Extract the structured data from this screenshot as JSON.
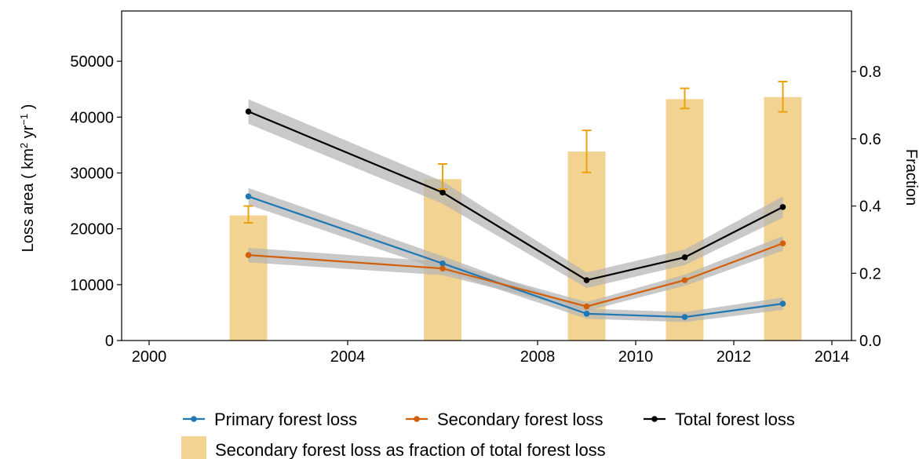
{
  "chart_data": {
    "type": "line",
    "x_axis": {
      "range": [
        1999.5,
        2014.5
      ],
      "ticks": [
        2000,
        2004,
        2008,
        2010,
        2012,
        2014
      ],
      "tick_labels": [
        "2000",
        "2004",
        "2008",
        "2010",
        "2012",
        "2014"
      ],
      "scale": "nonlinear: 2000–2008 compressed relative to 2008–2014"
    },
    "y_axis_left": {
      "label_prefix": "Loss area ( km",
      "label_sup1": "2",
      "label_mid": " yr",
      "label_sup2": "−1",
      "label_suffix": " )",
      "range": [
        0,
        59000
      ],
      "ticks": [
        0,
        10000,
        20000,
        30000,
        40000,
        50000
      ],
      "tick_labels": [
        "0",
        "10000",
        "20000",
        "30000",
        "40000",
        "50000"
      ]
    },
    "y_axis_right": {
      "label": "Fraction",
      "range": [
        0,
        0.98
      ],
      "ticks": [
        0.0,
        0.2,
        0.4,
        0.6,
        0.8
      ],
      "tick_labels": [
        "0.0",
        "0.2",
        "0.4",
        "0.6",
        "0.8"
      ]
    },
    "x": [
      2002,
      2006,
      2009,
      2011,
      2013
    ],
    "series": [
      {
        "name": "Primary forest loss",
        "type": "line",
        "color": "#1f78b4",
        "values": [
          25800,
          13800,
          4800,
          4200,
          6600
        ],
        "band_halfwidth": [
          1500,
          1300,
          900,
          900,
          1100
        ]
      },
      {
        "name": "Secondary forest loss",
        "type": "line",
        "color": "#d35f0a",
        "values": [
          15300,
          12900,
          6100,
          10800,
          17400
        ],
        "band_halfwidth": [
          1300,
          1200,
          800,
          1000,
          1300
        ]
      },
      {
        "name": "Total forest loss",
        "type": "line",
        "color": "#000000",
        "values": [
          41000,
          26500,
          10800,
          14900,
          23900
        ],
        "band_halfwidth": [
          2200,
          2000,
          1400,
          1400,
          1900
        ]
      }
    ],
    "bars": {
      "name": "Secondary forest loss as fraction of total forest loss",
      "axis": "right",
      "color": "#f3d391",
      "errorbar_color": "#e8a30d",
      "values": [
        0.372,
        0.48,
        0.562,
        0.718,
        0.724
      ],
      "err_low": [
        0.35,
        0.45,
        0.5,
        0.69,
        0.68
      ],
      "err_high": [
        0.4,
        0.525,
        0.625,
        0.75,
        0.77
      ]
    },
    "legend": {
      "position": "bottom",
      "line_entries": [
        "Primary forest loss",
        "Secondary forest loss",
        "Total forest loss"
      ],
      "bar_entry": "Secondary forest loss as fraction of total forest loss"
    },
    "colors": {
      "band": "#b4b4b4"
    }
  }
}
